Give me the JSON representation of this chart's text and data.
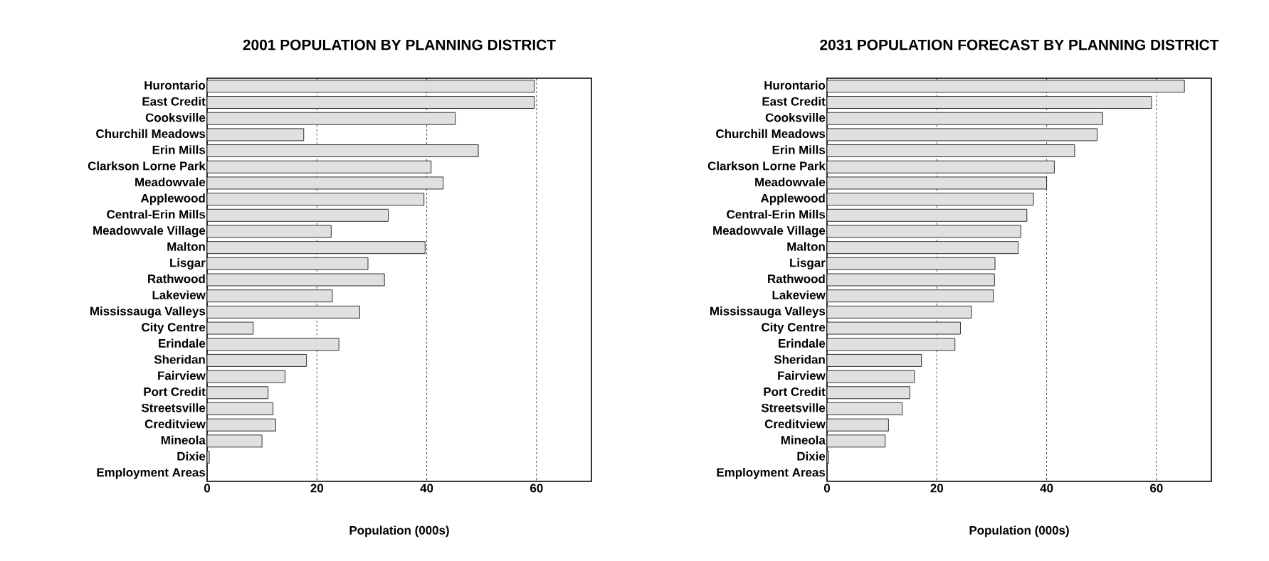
{
  "chart_data": [
    {
      "type": "bar",
      "orientation": "horizontal",
      "title": "2001 POPULATION BY PLANNING DISTRICT",
      "xlabel": "Population (000s)",
      "categories": [
        "Hurontario",
        "East Credit",
        "Cooksville",
        "Churchill Meadows",
        "Erin Mills",
        "Clarkson Lorne Park",
        "Meadowvale",
        "Applewood",
        "Central-Erin Mills",
        "Meadowvale Village",
        "Malton",
        "Lisgar",
        "Rathwood",
        "Lakeview",
        "Mississauga Valleys",
        "City Centre",
        "Erindale",
        "Sheridan",
        "Fairview",
        "Port Credit",
        "Streetsville",
        "Creditview",
        "Mineola",
        "Dixie",
        "Employment Areas"
      ],
      "values": [
        59.6,
        59.6,
        45.2,
        17.6,
        49.4,
        40.8,
        43.0,
        39.5,
        33.0,
        22.6,
        39.7,
        29.3,
        32.3,
        22.8,
        27.8,
        8.4,
        24.0,
        18.1,
        14.2,
        11.1,
        12.0,
        12.5,
        10.0,
        0.4,
        null
      ],
      "color": "#e0e0e0",
      "xlim": [
        0,
        70
      ],
      "xticks": [
        0,
        20,
        40,
        60
      ],
      "grid": "x"
    },
    {
      "type": "bar",
      "orientation": "horizontal",
      "title": "2031 POPULATION FORECAST BY PLANNING DISTRICT",
      "xlabel": "Population (000s)",
      "categories": [
        "Hurontario",
        "East Credit",
        "Cooksville",
        "Churchill Meadows",
        "Erin Mills",
        "Clarkson Lorne Park",
        "Meadowvale",
        "Applewood",
        "Central-Erin Mills",
        "Meadowvale Village",
        "Malton",
        "Lisgar",
        "Rathwood",
        "Lakeview",
        "Mississauga Valleys",
        "City Centre",
        "Erindale",
        "Sheridan",
        "Fairview",
        "Port Credit",
        "Streetsville",
        "Creditview",
        "Mineola",
        "Dixie",
        "Employment Areas"
      ],
      "values": [
        65.1,
        59.1,
        50.2,
        49.2,
        45.1,
        41.4,
        40.0,
        37.6,
        36.4,
        35.3,
        34.8,
        30.6,
        30.5,
        30.3,
        26.3,
        24.3,
        23.3,
        17.2,
        15.9,
        15.1,
        13.7,
        11.2,
        10.6,
        0.3,
        null
      ],
      "color": "#e0e0e0",
      "xlim": [
        0,
        70
      ],
      "xticks": [
        0,
        20,
        40,
        60
      ],
      "grid": "x"
    }
  ]
}
